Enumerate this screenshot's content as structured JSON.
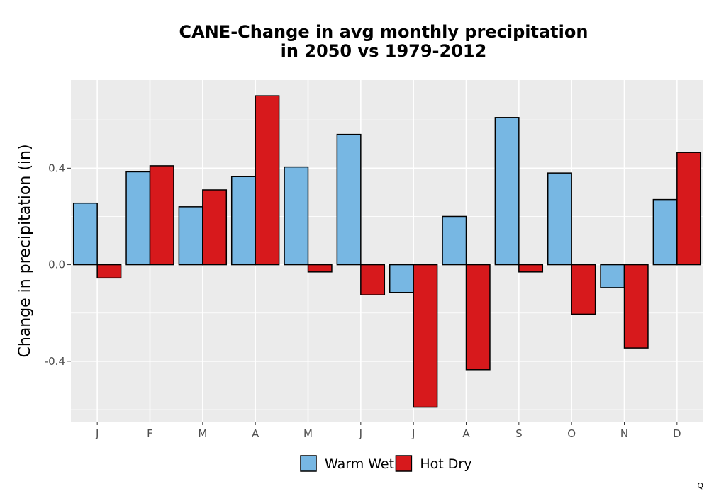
{
  "chart_data": {
    "type": "bar",
    "title_lines": [
      "CANE-Change in avg monthly precipitation",
      "in 2050 vs 1979-2012"
    ],
    "xlabel": "",
    "ylabel": "Change in precipitation (in)",
    "categories": [
      "J",
      "F",
      "M",
      "A",
      "M",
      "J",
      "J",
      "A",
      "S",
      "O",
      "N",
      "D"
    ],
    "series": [
      {
        "name": "Warm Wet",
        "color": "#77b7e3",
        "values": [
          0.255,
          0.385,
          0.24,
          0.365,
          0.405,
          0.54,
          -0.115,
          0.2,
          0.61,
          0.38,
          -0.095,
          0.27
        ]
      },
      {
        "name": "Hot Dry",
        "color": "#d7191c",
        "values": [
          -0.055,
          0.41,
          0.31,
          0.7,
          -0.03,
          -0.125,
          -0.59,
          -0.435,
          -0.03,
          -0.205,
          -0.345,
          0.465
        ]
      }
    ],
    "yticks": [
      -0.4,
      0.0,
      0.4
    ],
    "ytick_labels": [
      "-0.4",
      "0.0",
      "0.4"
    ],
    "ylim": [
      -0.65,
      0.765
    ],
    "grid": true,
    "panel_color": "#ebebeb",
    "legend_position": "bottom",
    "corner_text": "Q"
  }
}
